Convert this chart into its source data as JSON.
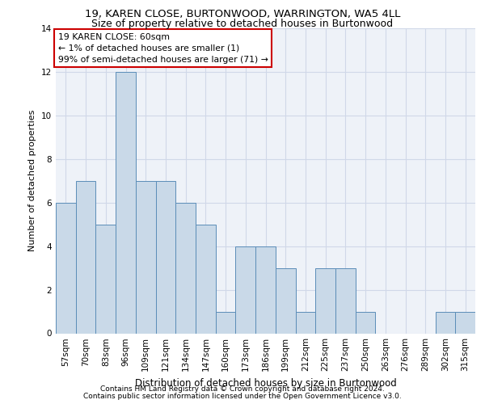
{
  "title1": "19, KAREN CLOSE, BURTONWOOD, WARRINGTON, WA5 4LL",
  "title2": "Size of property relative to detached houses in Burtonwood",
  "xlabel": "Distribution of detached houses by size in Burtonwood",
  "ylabel": "Number of detached properties",
  "categories": [
    "57sqm",
    "70sqm",
    "83sqm",
    "96sqm",
    "109sqm",
    "121sqm",
    "134sqm",
    "147sqm",
    "160sqm",
    "173sqm",
    "186sqm",
    "199sqm",
    "212sqm",
    "225sqm",
    "237sqm",
    "250sqm",
    "263sqm",
    "276sqm",
    "289sqm",
    "302sqm",
    "315sqm"
  ],
  "values": [
    6,
    7,
    5,
    12,
    7,
    7,
    6,
    5,
    1,
    4,
    4,
    3,
    1,
    3,
    3,
    1,
    0,
    0,
    0,
    1,
    1
  ],
  "bar_color": "#c9d9e8",
  "bar_edge_color": "#5b8db8",
  "annotation_box_text": "19 KAREN CLOSE: 60sqm\n← 1% of detached houses are smaller (1)\n99% of semi-detached houses are larger (71) →",
  "annotation_box_color": "#ffffff",
  "annotation_box_edge_color": "#cc0000",
  "footer1": "Contains HM Land Registry data © Crown copyright and database right 2024.",
  "footer2": "Contains public sector information licensed under the Open Government Licence v3.0.",
  "ylim": [
    0,
    14
  ],
  "yticks": [
    0,
    2,
    4,
    6,
    8,
    10,
    12,
    14
  ],
  "grid_color": "#d0d8e8",
  "background_color": "#eef2f8",
  "title1_fontsize": 9.5,
  "title2_fontsize": 9.0,
  "ylabel_fontsize": 8,
  "xlabel_fontsize": 8.5,
  "tick_fontsize": 7.5,
  "footer_fontsize": 6.5,
  "annotation_fontsize": 7.8
}
